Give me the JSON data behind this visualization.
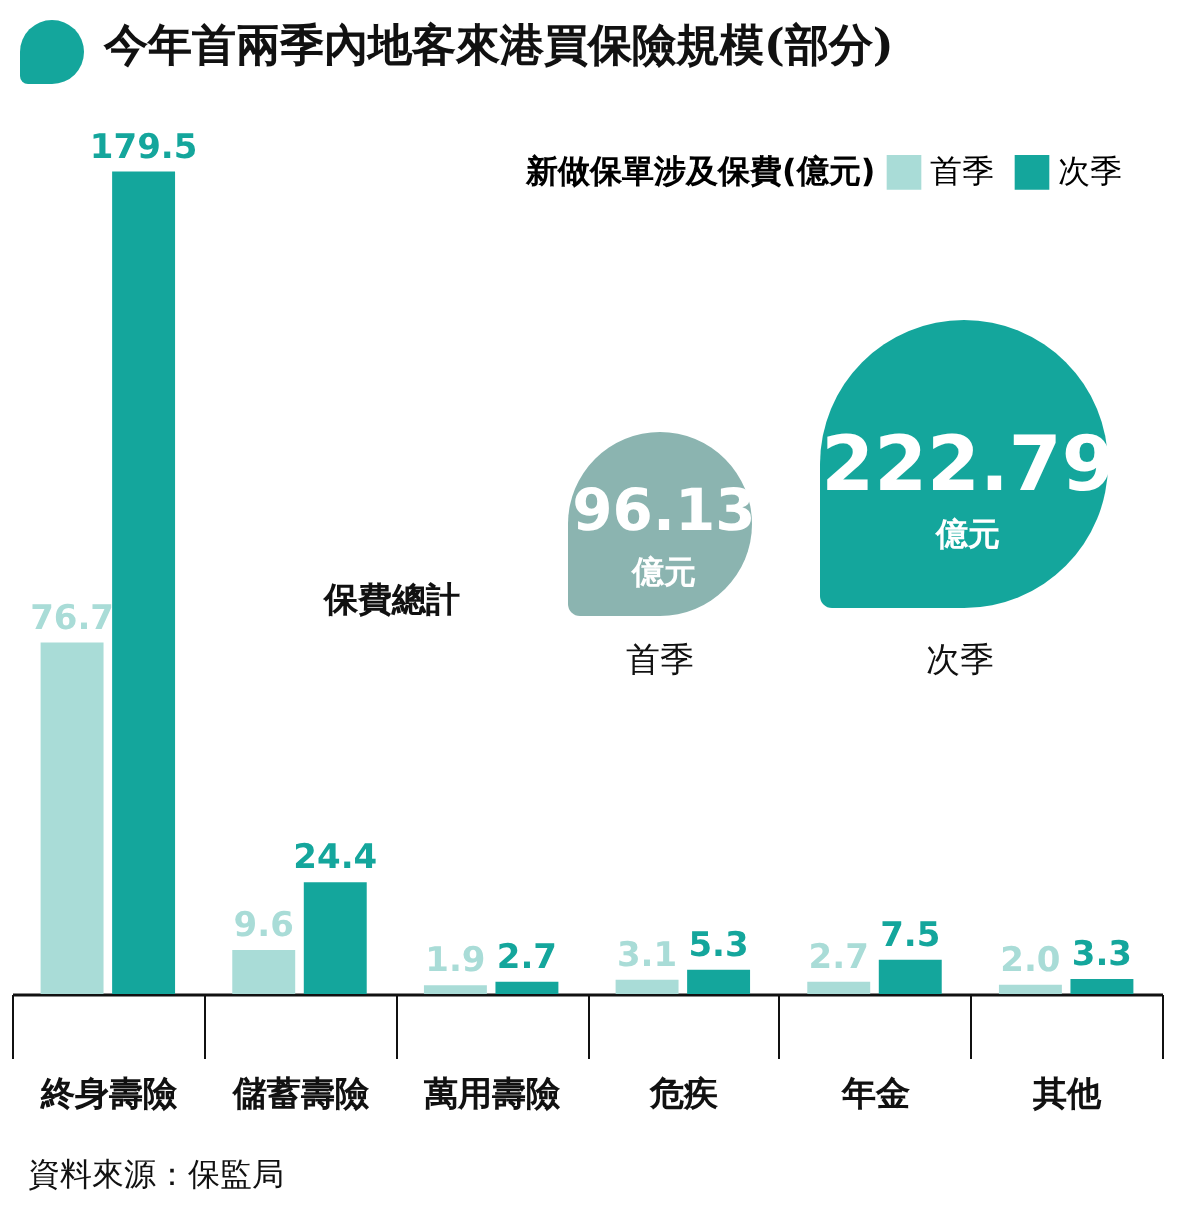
{
  "chart_data": {
    "type": "bar",
    "title": "今年首兩季內地客來港買保險規模(部分)",
    "legend_title": "新做保單涉及保費(億元)",
    "categories": [
      "終身壽險",
      "儲蓄壽險",
      "萬用壽險",
      "危疾",
      "年金",
      "其他"
    ],
    "series": [
      {
        "name": "首季",
        "color": "#a9dcd7",
        "values": [
          76.7,
          9.6,
          1.9,
          3.1,
          2.7,
          2.0
        ],
        "value_labels": [
          "76.7",
          "9.6",
          "1.9",
          "3.1",
          "2.7",
          "2.0"
        ]
      },
      {
        "name": "次季",
        "color": "#14a69c",
        "values": [
          179.5,
          24.4,
          2.7,
          5.3,
          7.5,
          3.3
        ],
        "value_labels": [
          "179.5",
          "24.4",
          "2.7",
          "5.3",
          "7.5",
          "3.3"
        ]
      }
    ],
    "legend": "top right",
    "grid": false,
    "annotations": [
      "保費總計",
      "96.13",
      "億元",
      "首季",
      "222.79",
      "億元",
      "次季",
      "資料來源：保監局"
    ]
  }
}
